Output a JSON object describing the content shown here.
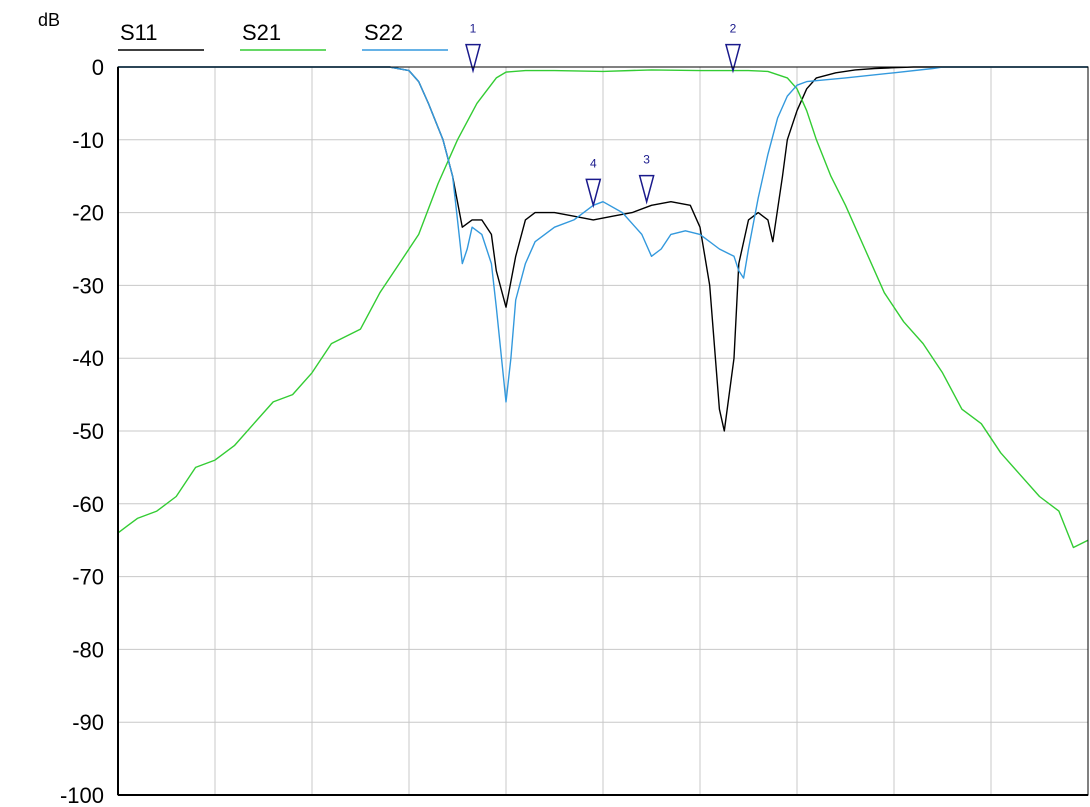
{
  "chart_data": {
    "type": "line",
    "ylabel": "dB",
    "ylim": [
      -100,
      0
    ],
    "yticks": [
      "0",
      "-10",
      "-20",
      "-30",
      "-40",
      "-50",
      "-60",
      "-70",
      "-80",
      "-90",
      "-100"
    ],
    "x_gridlines": 10,
    "xlim": [
      0,
      1
    ],
    "grid": true,
    "legend_position": "top",
    "series": [
      {
        "name": "S11",
        "color": "#000000",
        "points": [
          [
            0,
            0
          ],
          [
            0.28,
            0
          ],
          [
            0.3,
            -0.5
          ],
          [
            0.31,
            -2
          ],
          [
            0.32,
            -5
          ],
          [
            0.335,
            -10
          ],
          [
            0.345,
            -15
          ],
          [
            0.355,
            -22
          ],
          [
            0.365,
            -21
          ],
          [
            0.375,
            -21
          ],
          [
            0.385,
            -23
          ],
          [
            0.39,
            -28
          ],
          [
            0.4,
            -33
          ],
          [
            0.41,
            -26
          ],
          [
            0.42,
            -21
          ],
          [
            0.43,
            -20
          ],
          [
            0.45,
            -20
          ],
          [
            0.47,
            -20.5
          ],
          [
            0.49,
            -21
          ],
          [
            0.51,
            -20.5
          ],
          [
            0.53,
            -20
          ],
          [
            0.55,
            -19
          ],
          [
            0.57,
            -18.5
          ],
          [
            0.59,
            -19
          ],
          [
            0.6,
            -22
          ],
          [
            0.61,
            -30
          ],
          [
            0.62,
            -47
          ],
          [
            0.625,
            -50
          ],
          [
            0.635,
            -40
          ],
          [
            0.64,
            -27
          ],
          [
            0.65,
            -21
          ],
          [
            0.66,
            -20
          ],
          [
            0.67,
            -21
          ],
          [
            0.675,
            -24
          ],
          [
            0.685,
            -15
          ],
          [
            0.69,
            -10
          ],
          [
            0.7,
            -6
          ],
          [
            0.71,
            -3
          ],
          [
            0.72,
            -1.5
          ],
          [
            0.74,
            -0.8
          ],
          [
            0.76,
            -0.4
          ],
          [
            0.78,
            -0.2
          ],
          [
            0.8,
            -0.1
          ],
          [
            0.82,
            0
          ],
          [
            1.0,
            0
          ]
        ]
      },
      {
        "name": "S21",
        "color": "#33cc33",
        "points": [
          [
            0,
            -64
          ],
          [
            0.02,
            -62
          ],
          [
            0.04,
            -61
          ],
          [
            0.06,
            -59
          ],
          [
            0.08,
            -55
          ],
          [
            0.1,
            -54
          ],
          [
            0.12,
            -52
          ],
          [
            0.14,
            -49
          ],
          [
            0.16,
            -46
          ],
          [
            0.18,
            -45
          ],
          [
            0.2,
            -42
          ],
          [
            0.22,
            -38
          ],
          [
            0.25,
            -36
          ],
          [
            0.27,
            -31
          ],
          [
            0.29,
            -27
          ],
          [
            0.31,
            -23
          ],
          [
            0.33,
            -16
          ],
          [
            0.35,
            -10
          ],
          [
            0.37,
            -5
          ],
          [
            0.39,
            -1.5
          ],
          [
            0.4,
            -0.7
          ],
          [
            0.42,
            -0.5
          ],
          [
            0.45,
            -0.5
          ],
          [
            0.5,
            -0.6
          ],
          [
            0.55,
            -0.4
          ],
          [
            0.6,
            -0.5
          ],
          [
            0.65,
            -0.5
          ],
          [
            0.67,
            -0.6
          ],
          [
            0.69,
            -1.5
          ],
          [
            0.7,
            -3
          ],
          [
            0.71,
            -6
          ],
          [
            0.72,
            -10
          ],
          [
            0.735,
            -15
          ],
          [
            0.75,
            -19
          ],
          [
            0.77,
            -25
          ],
          [
            0.79,
            -31
          ],
          [
            0.81,
            -35
          ],
          [
            0.83,
            -38
          ],
          [
            0.85,
            -42
          ],
          [
            0.87,
            -47
          ],
          [
            0.89,
            -49
          ],
          [
            0.91,
            -53
          ],
          [
            0.93,
            -56
          ],
          [
            0.95,
            -59
          ],
          [
            0.97,
            -61
          ],
          [
            0.985,
            -66
          ],
          [
            1.0,
            -65
          ]
        ]
      },
      {
        "name": "S22",
        "color": "#3399dd",
        "points": [
          [
            0,
            0
          ],
          [
            0.28,
            0
          ],
          [
            0.3,
            -0.5
          ],
          [
            0.31,
            -2
          ],
          [
            0.32,
            -5
          ],
          [
            0.335,
            -10
          ],
          [
            0.345,
            -15
          ],
          [
            0.35,
            -21
          ],
          [
            0.355,
            -27
          ],
          [
            0.36,
            -25
          ],
          [
            0.365,
            -22
          ],
          [
            0.375,
            -23
          ],
          [
            0.385,
            -27
          ],
          [
            0.39,
            -33
          ],
          [
            0.4,
            -46
          ],
          [
            0.405,
            -40
          ],
          [
            0.41,
            -32
          ],
          [
            0.42,
            -27
          ],
          [
            0.43,
            -24
          ],
          [
            0.45,
            -22
          ],
          [
            0.47,
            -21
          ],
          [
            0.49,
            -19
          ],
          [
            0.5,
            -18.5
          ],
          [
            0.52,
            -20
          ],
          [
            0.54,
            -23
          ],
          [
            0.55,
            -26
          ],
          [
            0.56,
            -25
          ],
          [
            0.57,
            -23
          ],
          [
            0.585,
            -22.5
          ],
          [
            0.6,
            -23
          ],
          [
            0.62,
            -25
          ],
          [
            0.635,
            -26
          ],
          [
            0.64,
            -28
          ],
          [
            0.645,
            -29
          ],
          [
            0.65,
            -25
          ],
          [
            0.66,
            -18
          ],
          [
            0.67,
            -12
          ],
          [
            0.68,
            -7
          ],
          [
            0.69,
            -4
          ],
          [
            0.7,
            -2.5
          ],
          [
            0.71,
            -2
          ],
          [
            0.75,
            -1.5
          ],
          [
            0.8,
            -0.8
          ],
          [
            0.84,
            -0.2
          ],
          [
            0.85,
            0
          ],
          [
            1.0,
            0
          ]
        ]
      }
    ],
    "markers": [
      {
        "label": "1",
        "x": 0.366,
        "y": -0.5
      },
      {
        "label": "2",
        "x": 0.634,
        "y": -0.5
      },
      {
        "label": "3",
        "x": 0.545,
        "y": -18.5
      },
      {
        "label": "4",
        "x": 0.49,
        "y": -19
      }
    ]
  }
}
